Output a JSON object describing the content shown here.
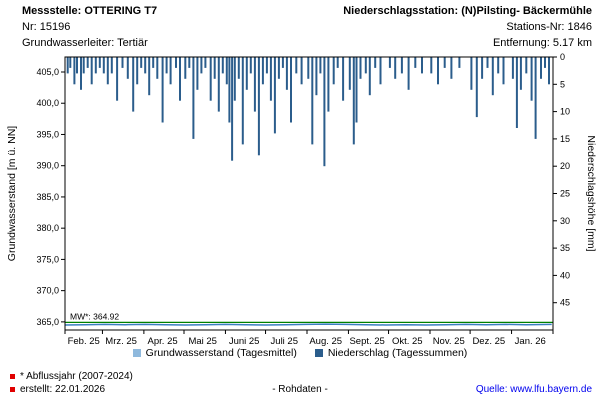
{
  "header": {
    "left": {
      "line1": "Messstelle: OTTERING T7",
      "line2": "Nr: 15196",
      "line3": "Grundwasserleiter: Tertiär"
    },
    "right": {
      "line1": "Niederschlagsstation: (N)Pilsting- Bäckermühle",
      "line2": "Stations-Nr: 1846",
      "line3": "Entfernung: 5.17 km"
    }
  },
  "legend": {
    "items": [
      {
        "label": "Grundwasserstand (Tagesmittel)",
        "color": "#8fb9dd"
      },
      {
        "label": "Niederschlag (Tagessummen)",
        "color": "#2b5d8c"
      }
    ]
  },
  "footer": {
    "note1": "* Abflussjahr (2007-2024)",
    "note2": "erstellt:  22.01.2026",
    "center": "- Rohdaten -",
    "source": "Quelle: www.lfu.bayern.de"
  },
  "chart_data": {
    "type": "bar+line",
    "title": "",
    "left_axis": {
      "label": "Grundwasserstand [m ü. NN]",
      "ticks": [
        365,
        370,
        375,
        380,
        385,
        390,
        395,
        400,
        405
      ],
      "tick_labels": [
        "365,0",
        "370,0",
        "375,0",
        "380,0",
        "385,0",
        "390,0",
        "395,0",
        "400,0",
        "405,0"
      ],
      "min": 363.7,
      "max": 407.4
    },
    "right_axis": {
      "label": "Niederschlagshöhe [mm]",
      "ticks": [
        0,
        5,
        10,
        15,
        20,
        25,
        30,
        35,
        40,
        45
      ],
      "tick_labels": [
        "0",
        "5",
        "10",
        "15",
        "20",
        "25",
        "30",
        "35",
        "40",
        "45"
      ],
      "min": 0,
      "max": 50,
      "inverted": true
    },
    "x_axis": {
      "labels": [
        "Feb. 25",
        "Mrz. 25",
        "Apr. 25",
        "Mai 25",
        "Juni 25",
        "Juli 25",
        "Aug. 25",
        "Sept. 25",
        "Okt. 25",
        "Nov. 25",
        "Dez. 25",
        "Jan. 26"
      ],
      "month_starts": [
        0,
        28,
        59,
        89,
        120,
        150,
        181,
        212,
        242,
        273,
        303,
        334
      ],
      "days_total": 365
    },
    "mw_line": {
      "label": "MW*: 364.92",
      "value": 364.92,
      "color": "#008000"
    },
    "precipitation": {
      "name": "Niederschlag (Tagessummen)",
      "color": "#2b5d8c",
      "unit": "mm",
      "points": [
        [
          2,
          3
        ],
        [
          4,
          2
        ],
        [
          7,
          5
        ],
        [
          9,
          3
        ],
        [
          12,
          6
        ],
        [
          14,
          3
        ],
        [
          17,
          2
        ],
        [
          20,
          5
        ],
        [
          23,
          3
        ],
        [
          26,
          2
        ],
        [
          29,
          3
        ],
        [
          32,
          5
        ],
        [
          35,
          3
        ],
        [
          39,
          8
        ],
        [
          43,
          2
        ],
        [
          47,
          4
        ],
        [
          51,
          10
        ],
        [
          54,
          5
        ],
        [
          57,
          2
        ],
        [
          60,
          3
        ],
        [
          63,
          7
        ],
        [
          66,
          2
        ],
        [
          69,
          4
        ],
        [
          73,
          12
        ],
        [
          76,
          3
        ],
        [
          79,
          5
        ],
        [
          83,
          2
        ],
        [
          86,
          8
        ],
        [
          90,
          4
        ],
        [
          93,
          2
        ],
        [
          96,
          15
        ],
        [
          99,
          6
        ],
        [
          102,
          3
        ],
        [
          105,
          2
        ],
        [
          109,
          8
        ],
        [
          112,
          4
        ],
        [
          115,
          10
        ],
        [
          118,
          3
        ],
        [
          121,
          5
        ],
        [
          123,
          12
        ],
        [
          125,
          19
        ],
        [
          127,
          8
        ],
        [
          130,
          4
        ],
        [
          133,
          16
        ],
        [
          136,
          6
        ],
        [
          139,
          3
        ],
        [
          142,
          10
        ],
        [
          145,
          18
        ],
        [
          148,
          5
        ],
        [
          151,
          3
        ],
        [
          154,
          8
        ],
        [
          157,
          14
        ],
        [
          160,
          4
        ],
        [
          163,
          2
        ],
        [
          166,
          6
        ],
        [
          169,
          12
        ],
        [
          173,
          3
        ],
        [
          177,
          5
        ],
        [
          182,
          4
        ],
        [
          185,
          16
        ],
        [
          188,
          7
        ],
        [
          191,
          3
        ],
        [
          194,
          20
        ],
        [
          197,
          10
        ],
        [
          201,
          5
        ],
        [
          204,
          2
        ],
        [
          208,
          8
        ],
        [
          213,
          6
        ],
        [
          216,
          16
        ],
        [
          218,
          12
        ],
        [
          221,
          4
        ],
        [
          225,
          3
        ],
        [
          228,
          7
        ],
        [
          232,
          2
        ],
        [
          236,
          5
        ],
        [
          243,
          2
        ],
        [
          247,
          4
        ],
        [
          252,
          3
        ],
        [
          257,
          6
        ],
        [
          262,
          2
        ],
        [
          267,
          3
        ],
        [
          274,
          3
        ],
        [
          279,
          5
        ],
        [
          284,
          2
        ],
        [
          289,
          4
        ],
        [
          295,
          2
        ],
        [
          304,
          6
        ],
        [
          308,
          11
        ],
        [
          312,
          4
        ],
        [
          316,
          2
        ],
        [
          320,
          7
        ],
        [
          324,
          3
        ],
        [
          328,
          5
        ],
        [
          335,
          4
        ],
        [
          338,
          13
        ],
        [
          341,
          6
        ],
        [
          345,
          3
        ],
        [
          349,
          8
        ],
        [
          352,
          15
        ],
        [
          356,
          4
        ],
        [
          359,
          2
        ],
        [
          362,
          5
        ]
      ]
    },
    "groundwater": {
      "name": "Grundwasserstand (Tagesmittel)",
      "color": "#3a7fc1",
      "unit": "m ü. NN",
      "points": [
        [
          0,
          364.5
        ],
        [
          15,
          364.55
        ],
        [
          30,
          364.6
        ],
        [
          45,
          364.55
        ],
        [
          60,
          364.6
        ],
        [
          75,
          364.55
        ],
        [
          90,
          364.5
        ],
        [
          105,
          364.55
        ],
        [
          120,
          364.6
        ],
        [
          135,
          364.55
        ],
        [
          150,
          364.5
        ],
        [
          165,
          364.55
        ],
        [
          180,
          364.6
        ],
        [
          195,
          364.65
        ],
        [
          210,
          364.6
        ],
        [
          225,
          364.55
        ],
        [
          240,
          364.5
        ],
        [
          255,
          364.55
        ],
        [
          270,
          364.5
        ],
        [
          285,
          364.55
        ],
        [
          300,
          364.6
        ],
        [
          315,
          364.55
        ],
        [
          330,
          364.6
        ],
        [
          345,
          364.55
        ],
        [
          364,
          364.6
        ]
      ]
    }
  }
}
